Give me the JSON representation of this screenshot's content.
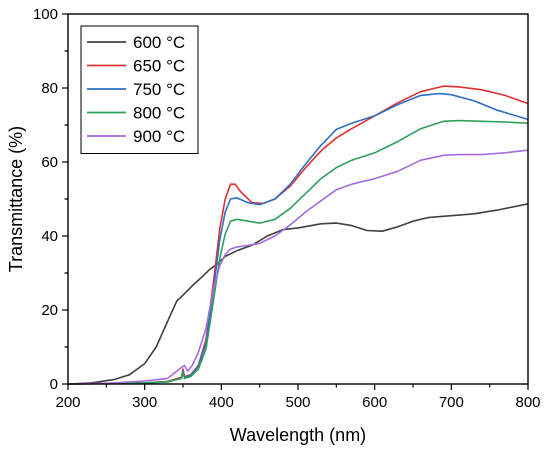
{
  "chart_data": {
    "type": "line",
    "xlabel": "Wavelength (nm)",
    "ylabel": "Transmittance (%)",
    "xlim": [
      200,
      800
    ],
    "ylim": [
      0,
      100
    ],
    "xticks": [
      "200",
      "300",
      "400",
      "500",
      "600",
      "700",
      "800"
    ],
    "yticks": [
      "0",
      "20",
      "40",
      "60",
      "80",
      "100"
    ],
    "legend_placement": "top-left",
    "grid": false,
    "series": [
      {
        "name": "600 °C",
        "color": "#404040",
        "x": [
          200,
          230,
          260,
          280,
          300,
          315,
          330,
          342,
          350,
          362,
          375,
          385,
          395,
          405,
          420,
          440,
          460,
          480,
          500,
          530,
          550,
          570,
          590,
          610,
          630,
          650,
          670,
          700,
          730,
          760,
          800
        ],
        "y": [
          0,
          0.3,
          1.2,
          2.5,
          5.5,
          10,
          17,
          22.5,
          24,
          26.5,
          29,
          31,
          32.5,
          34.5,
          36,
          37.5,
          40,
          41.7,
          42.2,
          43.3,
          43.5,
          42.8,
          41.5,
          41.3,
          42.5,
          44,
          45,
          45.5,
          46,
          47,
          48.7
        ]
      },
      {
        "name": "650 °C",
        "color": "#e03030",
        "x": [
          200,
          250,
          300,
          330,
          348,
          350,
          352,
          360,
          370,
          380,
          390,
          398,
          405,
          412,
          418,
          425,
          440,
          455,
          470,
          490,
          510,
          530,
          550,
          570,
          600,
          630,
          660,
          690,
          710,
          740,
          770,
          800
        ],
        "y": [
          0,
          0.1,
          0.3,
          0.7,
          1.8,
          4,
          2,
          2.5,
          5,
          12,
          28,
          42,
          50,
          54,
          54,
          52,
          49,
          48.8,
          50,
          53.5,
          58.5,
          63,
          66.5,
          69,
          72.5,
          76,
          79,
          80.5,
          80.3,
          79.5,
          78,
          75.8
        ]
      },
      {
        "name": "750 °C",
        "color": "#2f6fc4",
        "x": [
          200,
          250,
          300,
          330,
          348,
          350,
          352,
          360,
          370,
          380,
          390,
          398,
          405,
          412,
          420,
          435,
          450,
          470,
          490,
          510,
          530,
          550,
          570,
          600,
          630,
          660,
          685,
          700,
          730,
          760,
          800
        ],
        "y": [
          0,
          0.1,
          0.3,
          0.6,
          1.6,
          3.5,
          1.8,
          2.3,
          4.8,
          11,
          26,
          39,
          46.5,
          50,
          50.3,
          49,
          48.5,
          50,
          54,
          59.5,
          64.5,
          68.8,
          70.5,
          72.5,
          75.5,
          78,
          78.5,
          78.2,
          76.5,
          74,
          71.5
        ]
      },
      {
        "name": "800 °C",
        "color": "#2ea05a",
        "x": [
          200,
          250,
          300,
          330,
          348,
          350,
          352,
          360,
          370,
          380,
          390,
          398,
          405,
          412,
          420,
          435,
          450,
          470,
          490,
          510,
          530,
          550,
          570,
          600,
          630,
          660,
          690,
          710,
          740,
          770,
          800
        ],
        "y": [
          0,
          0.1,
          0.3,
          0.6,
          1.5,
          3.2,
          1.5,
          2,
          4,
          9.5,
          23,
          34,
          40.5,
          44,
          44.5,
          44,
          43.5,
          44.5,
          47.5,
          51.5,
          55.5,
          58.5,
          60.5,
          62.5,
          65.5,
          69,
          71,
          71.2,
          71,
          70.8,
          70.5
        ]
      },
      {
        "name": "900 °C",
        "color": "#a36de0",
        "x": [
          200,
          250,
          300,
          330,
          348,
          352,
          356,
          362,
          370,
          380,
          390,
          398,
          405,
          412,
          420,
          435,
          450,
          470,
          490,
          510,
          530,
          550,
          570,
          600,
          630,
          660,
          690,
          710,
          740,
          770,
          800
        ],
        "y": [
          0,
          0.2,
          0.8,
          1.5,
          4.5,
          5,
          3.5,
          5,
          8.5,
          15,
          26,
          32,
          35,
          36.5,
          37,
          37.5,
          38,
          40,
          43,
          46.5,
          49.5,
          52.5,
          54,
          55.5,
          57.5,
          60.5,
          61.8,
          62,
          62,
          62.5,
          63.2
        ]
      }
    ]
  }
}
